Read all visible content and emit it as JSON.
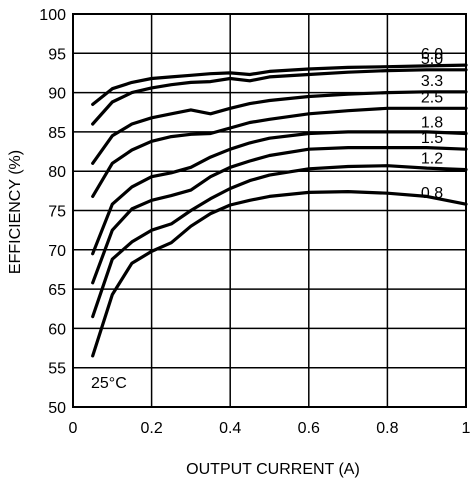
{
  "chart_data": {
    "type": "line",
    "xlabel": "OUTPUT CURRENT (A)",
    "ylabel": "EFFICIENCY (%)",
    "xlim": [
      0,
      1
    ],
    "ylim": [
      50,
      100
    ],
    "x_ticks": [
      "0",
      "0.2",
      "0.4",
      "0.6",
      "0.8",
      "1"
    ],
    "y_ticks": [
      "50",
      "55",
      "60",
      "65",
      "70",
      "75",
      "80",
      "85",
      "90",
      "95",
      "100"
    ],
    "grid": true,
    "annotation": "25°C",
    "line_color": "#000000",
    "series": [
      {
        "name": "6.0",
        "x": [
          0.05,
          0.1,
          0.15,
          0.2,
          0.25,
          0.3,
          0.35,
          0.4,
          0.45,
          0.5,
          0.6,
          0.7,
          0.8,
          0.9,
          1.0
        ],
        "y": [
          88.5,
          90.5,
          91.3,
          91.8,
          92.0,
          92.2,
          92.4,
          92.5,
          92.3,
          92.7,
          93.0,
          93.2,
          93.3,
          93.4,
          93.5
        ]
      },
      {
        "name": "5.0",
        "x": [
          0.05,
          0.1,
          0.15,
          0.2,
          0.25,
          0.3,
          0.35,
          0.4,
          0.45,
          0.5,
          0.6,
          0.7,
          0.8,
          0.9,
          1.0
        ],
        "y": [
          86.0,
          88.8,
          90.0,
          90.6,
          91.0,
          91.3,
          91.4,
          91.8,
          91.5,
          92.0,
          92.3,
          92.6,
          92.8,
          92.9,
          92.9
        ]
      },
      {
        "name": "3.3",
        "x": [
          0.05,
          0.1,
          0.15,
          0.2,
          0.25,
          0.3,
          0.35,
          0.4,
          0.45,
          0.5,
          0.6,
          0.7,
          0.8,
          0.9,
          1.0
        ],
        "y": [
          81.0,
          84.5,
          86.0,
          86.8,
          87.3,
          87.8,
          87.3,
          88.0,
          88.6,
          89.0,
          89.5,
          89.8,
          90.0,
          90.1,
          90.1
        ]
      },
      {
        "name": "2.5",
        "x": [
          0.05,
          0.1,
          0.15,
          0.2,
          0.25,
          0.3,
          0.35,
          0.4,
          0.45,
          0.5,
          0.6,
          0.7,
          0.8,
          0.9,
          1.0
        ],
        "y": [
          76.8,
          81.0,
          82.7,
          83.8,
          84.4,
          84.7,
          84.8,
          85.5,
          86.2,
          86.6,
          87.3,
          87.7,
          88.0,
          88.0,
          88.0
        ]
      },
      {
        "name": "1.8",
        "x": [
          0.05,
          0.1,
          0.15,
          0.2,
          0.25,
          0.3,
          0.35,
          0.4,
          0.45,
          0.5,
          0.6,
          0.7,
          0.8,
          0.9,
          1.0
        ],
        "y": [
          69.5,
          75.8,
          78.0,
          79.3,
          79.8,
          80.5,
          81.8,
          82.8,
          83.6,
          84.2,
          84.8,
          85.0,
          85.0,
          85.0,
          84.8
        ]
      },
      {
        "name": "1.5",
        "x": [
          0.05,
          0.1,
          0.15,
          0.2,
          0.25,
          0.3,
          0.35,
          0.4,
          0.45,
          0.5,
          0.6,
          0.7,
          0.8,
          0.9,
          1.0
        ],
        "y": [
          65.8,
          72.5,
          75.2,
          76.3,
          76.9,
          77.6,
          79.3,
          80.5,
          81.3,
          82.0,
          82.8,
          83.0,
          83.0,
          83.0,
          82.8
        ]
      },
      {
        "name": "1.2",
        "x": [
          0.05,
          0.1,
          0.15,
          0.2,
          0.25,
          0.3,
          0.35,
          0.4,
          0.45,
          0.5,
          0.6,
          0.7,
          0.8,
          0.9,
          1.0
        ],
        "y": [
          61.5,
          68.8,
          71.0,
          72.5,
          73.3,
          75.0,
          76.5,
          77.8,
          78.8,
          79.5,
          80.3,
          80.6,
          80.7,
          80.4,
          80.2
        ]
      },
      {
        "name": "0.8",
        "x": [
          0.05,
          0.1,
          0.15,
          0.2,
          0.25,
          0.3,
          0.35,
          0.4,
          0.45,
          0.5,
          0.6,
          0.7,
          0.8,
          0.9,
          1.0
        ],
        "y": [
          56.5,
          64.3,
          68.3,
          69.8,
          70.9,
          73.0,
          74.6,
          75.7,
          76.3,
          76.8,
          77.3,
          77.4,
          77.2,
          76.8,
          75.8
        ]
      }
    ]
  }
}
